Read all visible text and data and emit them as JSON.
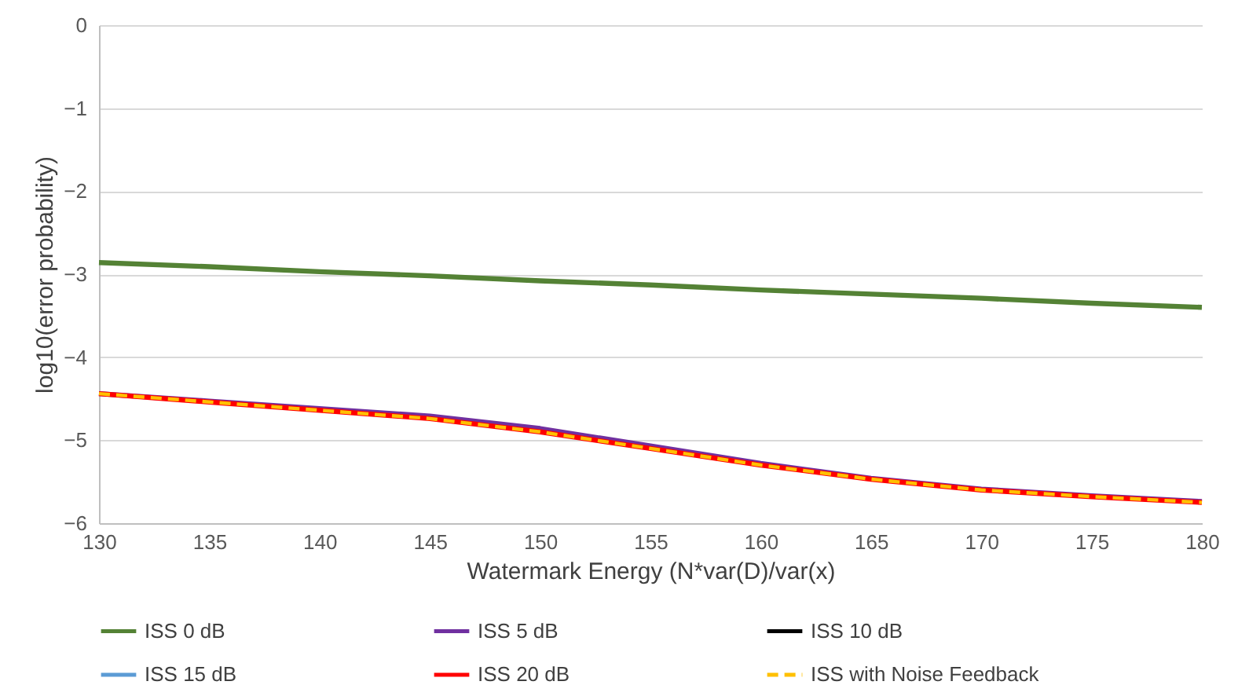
{
  "chart_data": {
    "type": "line",
    "xlabel": "Watermark Energy (N*var(D)/var(x)",
    "ylabel": "log10(error probability)",
    "x": [
      130,
      135,
      140,
      145,
      150,
      155,
      160,
      165,
      170,
      175,
      180
    ],
    "xlim": [
      130,
      180
    ],
    "xticks": [
      130,
      135,
      140,
      145,
      150,
      155,
      160,
      165,
      170,
      175,
      180
    ],
    "ylim": [
      -6,
      0
    ],
    "yticks": [
      -6,
      -5,
      -4,
      -3,
      -2,
      -1,
      0
    ],
    "grid": "y",
    "legend": "bottom",
    "marker": "none",
    "series": [
      {
        "name": "ISS 0 dB",
        "color": "#548235",
        "values": [
          -2.86,
          -2.91,
          -2.97,
          -3.02,
          -3.08,
          -3.13,
          -3.19,
          -3.24,
          -3.29,
          -3.35,
          -3.4
        ]
      },
      {
        "name": "ISS 5 dB",
        "color": "#7030a0",
        "values": [
          -4.44,
          -4.53,
          -4.62,
          -4.71,
          -4.86,
          -5.07,
          -5.28,
          -5.46,
          -5.59,
          -5.67,
          -5.74
        ]
      },
      {
        "name": "ISS 10 dB",
        "color": "#000000",
        "values": [
          null,
          null,
          null,
          null,
          null,
          null,
          null,
          null,
          null,
          null,
          null
        ]
      },
      {
        "name": "ISS 15 dB",
        "color": "#5b9bd5",
        "values": [
          null,
          null,
          null,
          null,
          null,
          null,
          null,
          null,
          null,
          null,
          null
        ]
      },
      {
        "name": "ISS 20 dB",
        "color": "#ff0000",
        "values": [
          -4.44,
          -4.54,
          -4.64,
          -4.74,
          -4.9,
          -5.1,
          -5.3,
          -5.47,
          -5.6,
          -5.68,
          -5.75
        ]
      },
      {
        "name": "ISS with Noise Feedback",
        "color": "#ffc000",
        "line_style": "dashed",
        "values": [
          -4.44,
          -4.54,
          -4.64,
          -4.74,
          -4.9,
          -5.1,
          -5.3,
          -5.47,
          -5.6,
          -5.68,
          -5.75
        ]
      }
    ]
  }
}
